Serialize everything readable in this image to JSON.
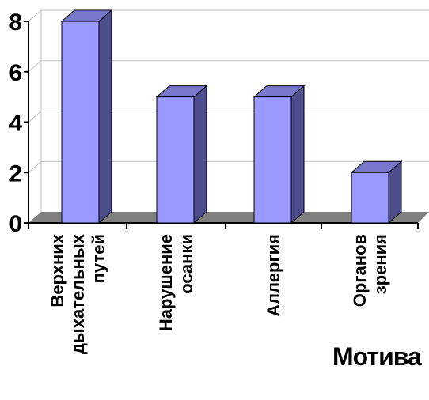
{
  "chart_data": {
    "type": "bar",
    "categories": [
      [
        "Верхних",
        "дыхательных",
        "путей"
      ],
      [
        "Нарушение",
        "осанки"
      ],
      [
        "Аллергия"
      ],
      [
        "Органов",
        "зрения"
      ]
    ],
    "values": [
      8,
      5,
      5,
      2
    ],
    "ylim": [
      0,
      8
    ],
    "yticks": [
      "0",
      "2",
      "4",
      "6",
      "8"
    ],
    "grid": true,
    "legend_fragment": "Мотива",
    "colors": {
      "bar_front": "#9999ff",
      "bar_side": "#4d4d8c",
      "bar_top": "#7777cc",
      "floor": "#808080",
      "grid": "#c0c0c0",
      "axis": "#000000"
    }
  }
}
